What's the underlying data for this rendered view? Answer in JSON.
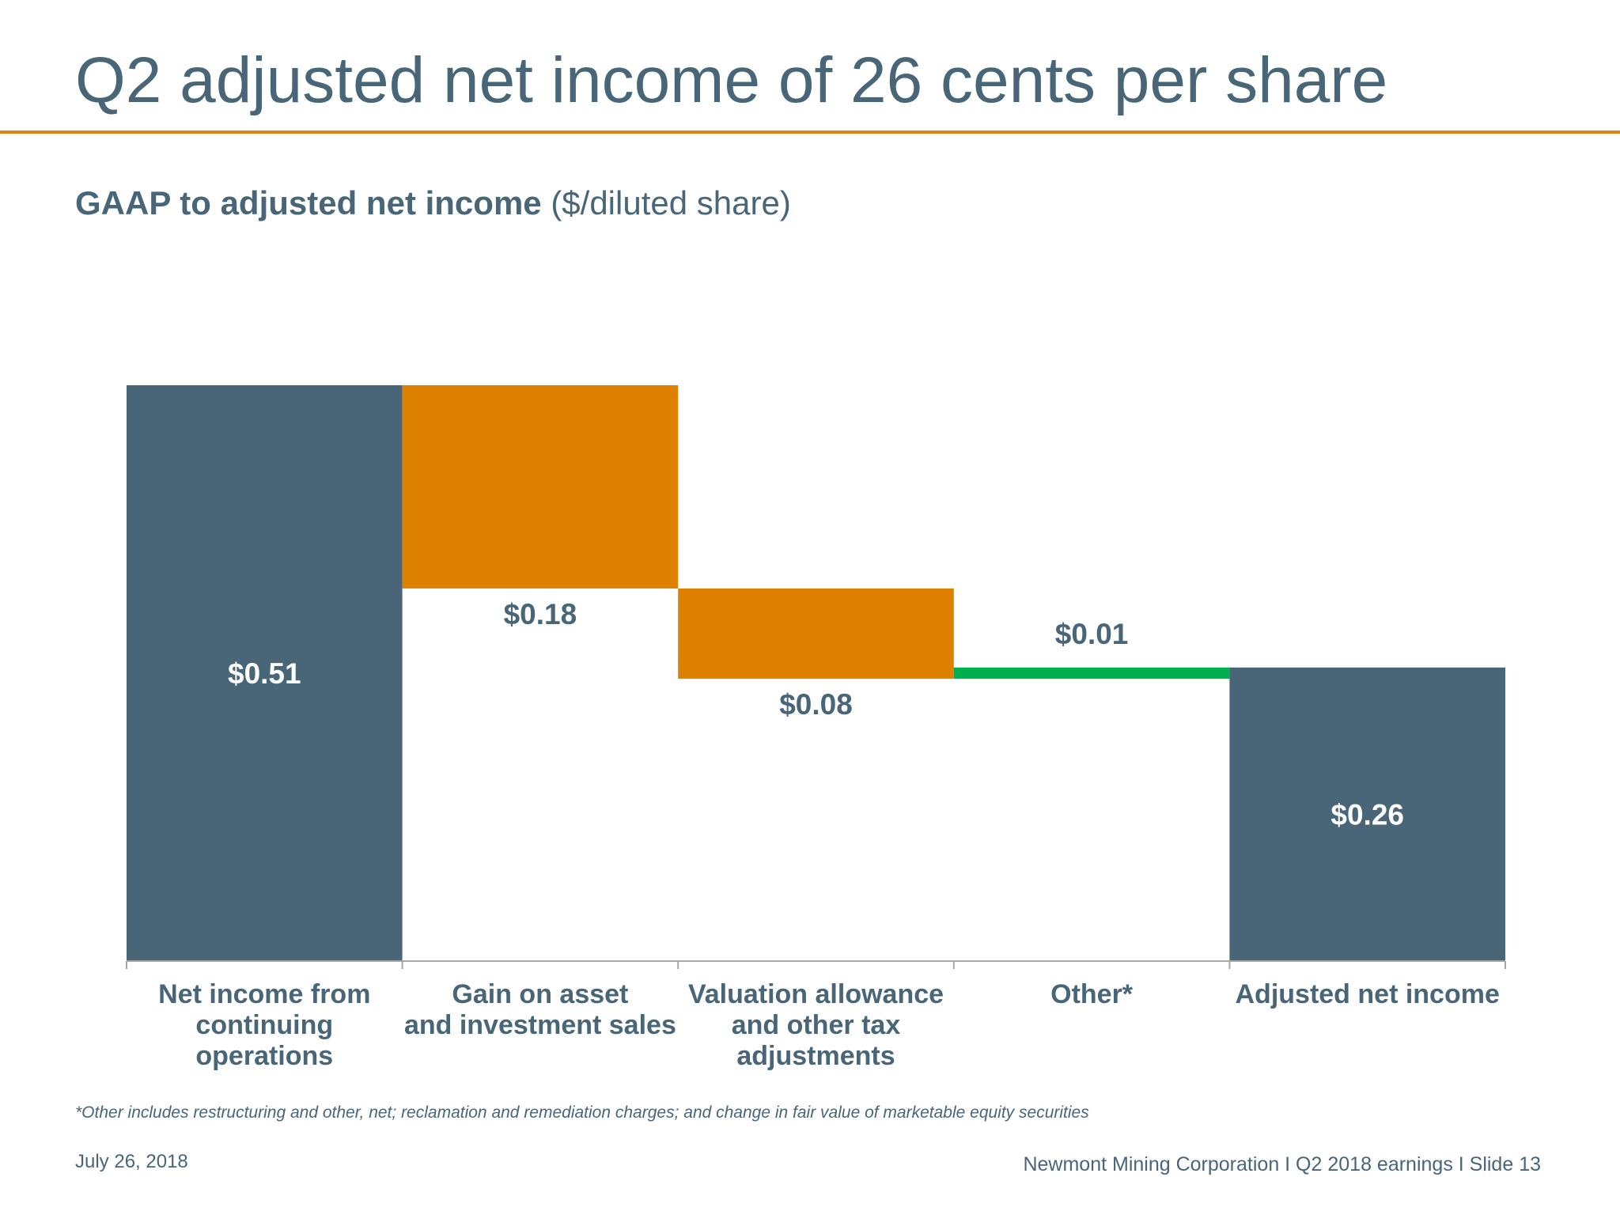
{
  "title": "Q2 adjusted net income of 26 cents per share",
  "subtitle": {
    "bold": "GAAP to adjusted net income",
    "normal": "($/diluted share)"
  },
  "colors": {
    "total": "#486678",
    "decrease": "#de8100",
    "increase": "#00b050",
    "text": "#486678",
    "rule": "#de8514"
  },
  "chart_data": {
    "type": "waterfall",
    "title": "GAAP to adjusted net income",
    "ylabel": "$/diluted share",
    "categories": [
      [
        "Net income from",
        "continuing",
        "operations"
      ],
      [
        "Gain on asset",
        "and investment sales"
      ],
      [
        "Valuation allowance",
        "and other tax",
        "adjustments"
      ],
      [
        "Other*"
      ],
      [
        "Adjusted net income"
      ]
    ],
    "steps": [
      {
        "kind": "total",
        "value": 0.51,
        "label": "$0.51"
      },
      {
        "kind": "decrease",
        "value": -0.18,
        "label": "$0.18"
      },
      {
        "kind": "decrease",
        "value": -0.08,
        "label": "$0.08"
      },
      {
        "kind": "increase",
        "value": 0.01,
        "label": "$0.01"
      },
      {
        "kind": "total",
        "value": 0.26,
        "label": "$0.26"
      }
    ],
    "ylim": [
      0,
      0.51
    ],
    "grid": false,
    "legend": "none"
  },
  "footnote": "*Other includes restructuring and other, net; reclamation and remediation charges; and change in fair value of marketable equity securities",
  "footer": {
    "date": "July 26, 2018",
    "source": "Newmont Mining Corporation  I  Q2 2018 earnings  I  Slide 13"
  }
}
